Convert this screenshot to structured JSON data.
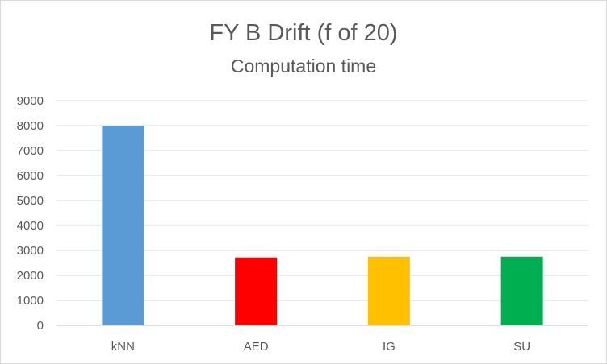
{
  "chart_data": {
    "type": "bar",
    "title": "FY B Drift (f of 20)",
    "subtitle": "Computation time",
    "categories": [
      "kNN",
      "AED",
      "IG",
      "SU"
    ],
    "values": [
      8000,
      2720,
      2750,
      2750
    ],
    "colors": [
      "#5b9bd5",
      "#ff0000",
      "#ffc000",
      "#00b050"
    ],
    "ylim": [
      0,
      9000
    ],
    "yticks": [
      0,
      1000,
      2000,
      3000,
      4000,
      5000,
      6000,
      7000,
      8000,
      9000
    ],
    "grid": true,
    "legend": "none"
  }
}
